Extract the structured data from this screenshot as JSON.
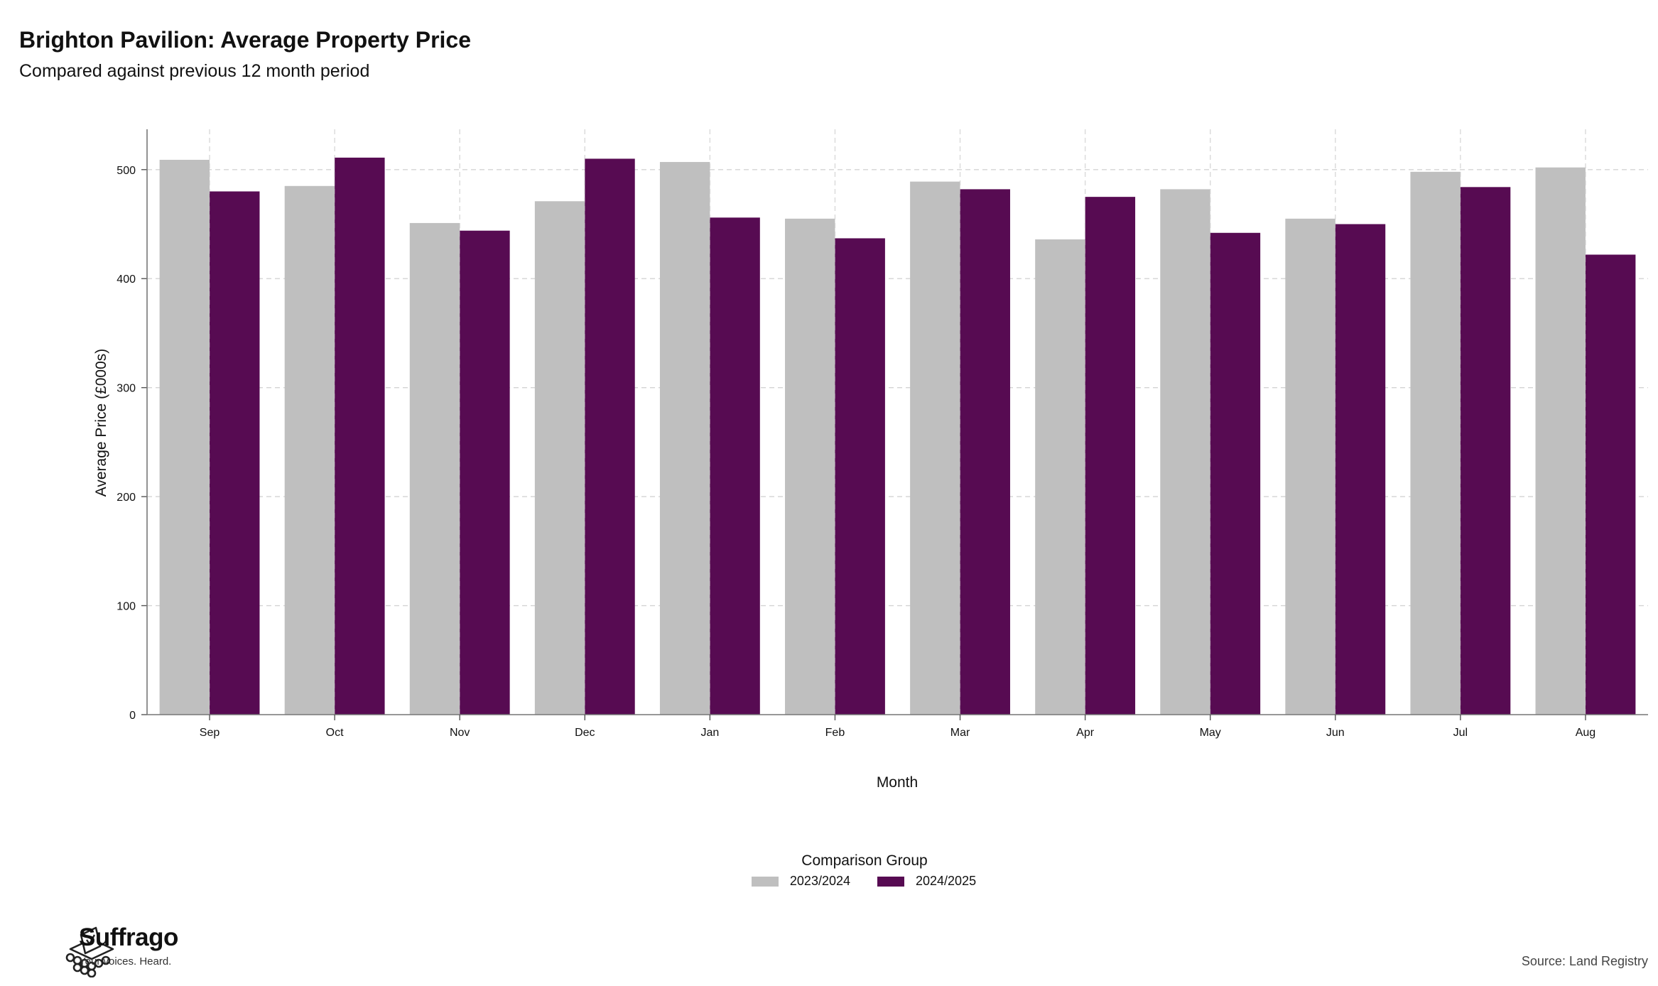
{
  "header": {
    "title": "Brighton Pavilion: Average Property Price",
    "subtitle": "Compared against previous 12 month period"
  },
  "chart_data": {
    "type": "bar",
    "title": "Brighton Pavilion: Average Property Price",
    "subtitle": "Compared against previous 12 month period",
    "xlabel": "Month",
    "ylabel": "Average Price (£000s)",
    "categories": [
      "Sep",
      "Oct",
      "Nov",
      "Dec",
      "Jan",
      "Feb",
      "Mar",
      "Apr",
      "May",
      "Jun",
      "Jul",
      "Aug"
    ],
    "series": [
      {
        "name": "2023/2024",
        "color": "#bfbfbf",
        "values": [
          509,
          485,
          451,
          471,
          507,
          455,
          489,
          436,
          482,
          455,
          498,
          502
        ]
      },
      {
        "name": "2024/2025",
        "color": "#570b52",
        "values": [
          480,
          511,
          444,
          510,
          456,
          437,
          482,
          475,
          442,
          450,
          484,
          422
        ]
      }
    ],
    "ylim": [
      0,
      537
    ],
    "yticks": [
      0,
      100,
      200,
      300,
      400,
      500
    ],
    "grid": true,
    "legend_position": "bottom"
  },
  "legend": {
    "title": "Comparison Group",
    "items": [
      {
        "label": "2023/2024",
        "color": "#bfbfbf"
      },
      {
        "label": "2024/2025",
        "color": "#570b52"
      }
    ]
  },
  "footer": {
    "brand": "Suffrago",
    "tagline": "Your voices. Heard.",
    "source": "Source: Land Registry"
  }
}
